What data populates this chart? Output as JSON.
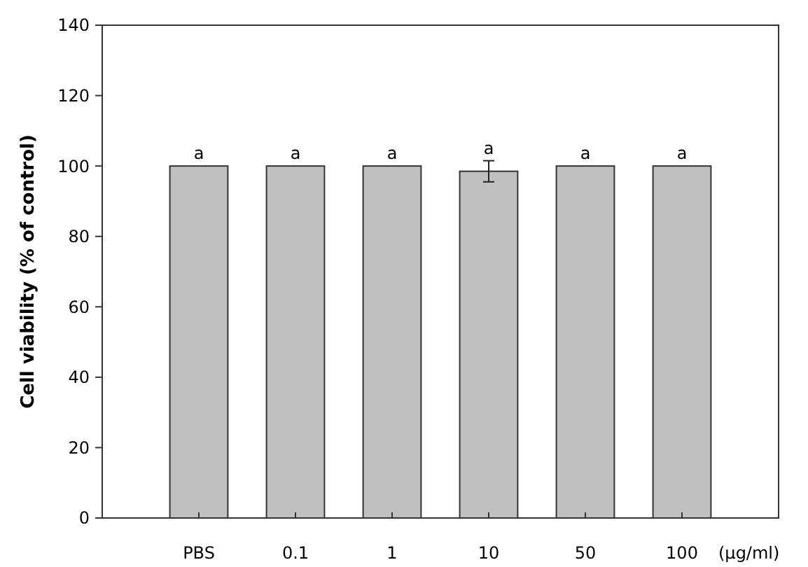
{
  "chart_data": {
    "type": "bar",
    "ylabel": "Cell viability (% of control)",
    "xlabel": "(μg/ml)",
    "categories": [
      "PBS",
      "0.1",
      "1",
      "10",
      "50",
      "100"
    ],
    "values": [
      100,
      100,
      100,
      98.5,
      100,
      100
    ],
    "errors": [
      null,
      null,
      null,
      3,
      null,
      null
    ],
    "color": "#c0c0c0",
    "ylim": [
      0,
      140
    ],
    "yticks": [
      0,
      20,
      40,
      60,
      80,
      100,
      120,
      140
    ],
    "annotations": [
      {
        "text": "a",
        "x": "PBS",
        "y": 100
      },
      {
        "text": "a",
        "x": "0.1",
        "y": 100
      },
      {
        "text": "a",
        "x": "1",
        "y": 100
      },
      {
        "text": "a",
        "x": "10",
        "y": 101.5
      },
      {
        "text": "a",
        "x": "50",
        "y": 100
      },
      {
        "text": "a",
        "x": "100",
        "y": 100
      }
    ]
  }
}
